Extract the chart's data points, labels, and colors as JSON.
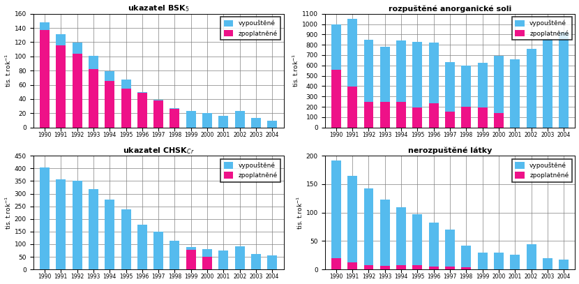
{
  "years": [
    1990,
    1991,
    1992,
    1993,
    1994,
    1995,
    1996,
    1997,
    1998,
    1999,
    2000,
    2001,
    2002,
    2003,
    2004
  ],
  "bsk5": {
    "title": "ukazatel BSK$_5$",
    "vypoustene": [
      148,
      131,
      119,
      101,
      79,
      67,
      50,
      39,
      27,
      23,
      20,
      16,
      23,
      13,
      10
    ],
    "zpoplatnene": [
      137,
      116,
      104,
      82,
      65,
      55,
      49,
      38,
      26,
      null,
      null,
      null,
      null,
      null,
      null
    ],
    "ylim": [
      0,
      160
    ],
    "yticks": [
      0,
      20,
      40,
      60,
      80,
      100,
      120,
      140,
      160
    ]
  },
  "anorg": {
    "title": "rozpuštěné anorganické soli",
    "vypoustene": [
      1000,
      1050,
      850,
      780,
      840,
      830,
      820,
      630,
      600,
      625,
      695,
      660,
      760,
      855,
      925
    ],
    "zpoplatnene": [
      560,
      395,
      245,
      250,
      245,
      195,
      235,
      155,
      200,
      195,
      140,
      null,
      null,
      null,
      null
    ],
    "ylim": [
      0,
      1100
    ],
    "yticks": [
      0,
      100,
      200,
      300,
      400,
      500,
      600,
      700,
      800,
      900,
      1000,
      1100
    ]
  },
  "chsk": {
    "title": "ukazatel CHSK$_{Cr}$",
    "vypoustene": [
      405,
      358,
      350,
      318,
      278,
      238,
      178,
      150,
      113,
      90,
      80,
      75,
      93,
      60,
      55
    ],
    "zpoplatnene": [
      null,
      null,
      null,
      null,
      null,
      null,
      null,
      null,
      null,
      77,
      50,
      null,
      null,
      null,
      null
    ],
    "ylim": [
      0,
      450
    ],
    "yticks": [
      0,
      50,
      100,
      150,
      200,
      250,
      300,
      350,
      400,
      450
    ]
  },
  "nerozp": {
    "title": "nerozpuštěné látky",
    "vypoustene": [
      192,
      165,
      143,
      123,
      109,
      97,
      83,
      70,
      42,
      30,
      30,
      26,
      45,
      20,
      17
    ],
    "zpoplatnene": [
      20,
      13,
      8,
      6,
      7,
      7,
      5,
      5,
      4,
      null,
      null,
      null,
      null,
      null,
      null
    ],
    "ylim": [
      0,
      200
    ],
    "yticks": [
      0,
      50,
      100,
      150,
      200
    ]
  },
  "color_vypoustene": "#55BBEE",
  "color_zpoplatnene": "#EE1188",
  "ylabel": "tis. t.rok$^{-1}$",
  "legend_vypoustene": "vypouštěné",
  "legend_zpoplatnene": "zpoplatněné",
  "bar_width": 0.6,
  "figsize": [
    8.3,
    4.07
  ],
  "dpi": 100
}
